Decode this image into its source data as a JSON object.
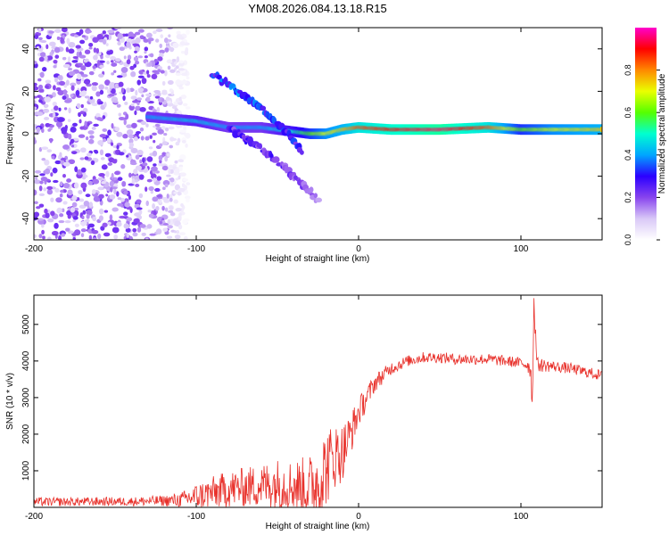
{
  "title": "YM08.2026.084.13.18.R15",
  "chart_data": [
    {
      "type": "heatmap",
      "title": "YM08.2026.084.13.18.R15",
      "xlabel": "Height of straight line (km)",
      "ylabel": "Frequency (Hz)",
      "xlim": [
        -200,
        150
      ],
      "ylim": [
        -50,
        50
      ],
      "x_ticks": [
        "-200",
        "-100",
        "0",
        "100"
      ],
      "y_ticks": [
        "40",
        "20",
        "0",
        "-20",
        "-40"
      ],
      "x_tick_values": [
        -200,
        -100,
        0,
        100
      ],
      "y_tick_values": [
        40,
        20,
        0,
        -20,
        -40
      ],
      "colorbar": {
        "label": "Normalized spectral amplitude",
        "range": [
          0,
          1
        ],
        "ticks": [
          "0.0",
          "0.2",
          "0.4",
          "0.6",
          "0.8"
        ],
        "tick_values": [
          0,
          0.2,
          0.4,
          0.6,
          0.8
        ],
        "colormap": [
          "#ffffff",
          "#d9c8f7",
          "#8844ee",
          "#2b00ff",
          "#00a6ff",
          "#00ffd0",
          "#55ff00",
          "#eaff00",
          "#ff8800",
          "#ff0000",
          "#ff00cc"
        ]
      },
      "features": [
        {
          "name": "carrier",
          "x": [
            -130,
            -100,
            -80,
            -60,
            -40,
            -30,
            -20,
            -10,
            0,
            20,
            50,
            80,
            100,
            120,
            150
          ],
          "y": [
            8,
            6,
            3,
            3,
            1,
            0,
            0,
            2,
            3,
            2,
            2,
            3,
            2,
            2,
            2
          ],
          "amplitude": [
            0.4,
            0.45,
            0.4,
            0.4,
            0.5,
            0.6,
            0.7,
            0.75,
            0.85,
            0.9,
            0.95,
            0.85,
            0.6,
            0.7,
            0.75
          ]
        },
        {
          "name": "upper-doppler-branch",
          "x": [
            -90,
            -80,
            -70,
            -60,
            -50,
            -40,
            -35
          ],
          "y": [
            28,
            23,
            18,
            12,
            5,
            -3,
            -8
          ],
          "amplitude": [
            0.3,
            0.35,
            0.35,
            0.35,
            0.3,
            0.3,
            0.3
          ]
        },
        {
          "name": "lower-doppler-branch",
          "x": [
            -80,
            -70,
            -60,
            -50,
            -40,
            -30,
            -25
          ],
          "y": [
            3,
            -2,
            -7,
            -13,
            -20,
            -27,
            -32
          ],
          "amplitude": [
            0.25,
            0.25,
            0.25,
            0.25,
            0.2,
            0.2,
            0.15
          ]
        }
      ],
      "noise_region": {
        "x": [
          -200,
          -105
        ],
        "y": [
          -50,
          50
        ],
        "amplitude": 0.15
      }
    },
    {
      "type": "line",
      "title": "",
      "xlabel": "Height of straight line (km)",
      "ylabel": "SNR (10 * v/v)",
      "xlim": [
        -200,
        150
      ],
      "ylim": [
        0,
        5800
      ],
      "x_ticks": [
        "-200",
        "-100",
        "0",
        "100"
      ],
      "y_ticks": [
        "1000",
        "2000",
        "3000",
        "4000",
        "5000"
      ],
      "x_tick_values": [
        -200,
        -100,
        0,
        100
      ],
      "y_tick_values": [
        1000,
        2000,
        3000,
        4000,
        5000
      ],
      "color": "#e8302a",
      "series": [
        {
          "name": "SNR",
          "x": [
            -200,
            -180,
            -160,
            -140,
            -120,
            -110,
            -100,
            -90,
            -80,
            -70,
            -60,
            -50,
            -40,
            -30,
            -25,
            -20,
            -15,
            -10,
            -5,
            0,
            10,
            20,
            30,
            40,
            50,
            60,
            70,
            80,
            90,
            100,
            104,
            106,
            107,
            108,
            110,
            120,
            130,
            140,
            150
          ],
          "y": [
            150,
            150,
            160,
            160,
            180,
            200,
            300,
            400,
            500,
            550,
            600,
            650,
            600,
            550,
            700,
            1100,
            1400,
            1500,
            2000,
            2600,
            3400,
            3800,
            4000,
            4100,
            4100,
            4050,
            4050,
            4050,
            4000,
            3950,
            3900,
            3800,
            2800,
            5600,
            3900,
            3850,
            3800,
            3700,
            3600
          ],
          "noise_amplitude": [
            120,
            120,
            120,
            120,
            150,
            200,
            350,
            450,
            500,
            550,
            600,
            700,
            700,
            900,
            1200,
            1100,
            900,
            800,
            600,
            400,
            250,
            180,
            150,
            150,
            150,
            150,
            150,
            150,
            150,
            150,
            200,
            300,
            300,
            300,
            200,
            150,
            150,
            150,
            150
          ]
        }
      ]
    }
  ]
}
